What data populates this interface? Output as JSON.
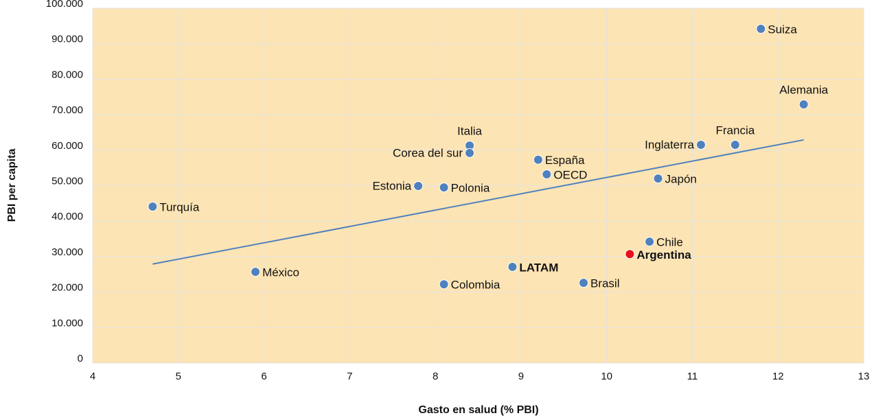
{
  "chart_data": {
    "type": "scatter",
    "xlabel": "Gasto en salud (% PBI)",
    "ylabel": "PBI per capita",
    "xlim": [
      4,
      13
    ],
    "xticks": [
      4,
      5,
      6,
      7,
      8,
      9,
      10,
      11,
      12,
      13
    ],
    "ylim": [
      0,
      100000
    ],
    "yticks": [
      0,
      {
        "value": 10000,
        "label": "10.000"
      },
      {
        "value": 20000,
        "label": "20.000"
      },
      {
        "value": 30000,
        "label": "30.000"
      },
      {
        "value": 40000,
        "label": "40.000"
      },
      {
        "value": 50000,
        "label": "50.000"
      },
      {
        "value": 60000,
        "label": "60.000"
      },
      {
        "value": 70000,
        "label": "70.000"
      },
      {
        "value": 80000,
        "label": "80.000"
      },
      {
        "value": 90000,
        "label": "90.000"
      },
      {
        "value": 100000,
        "label": "100.000"
      }
    ],
    "grid": true,
    "series": [
      {
        "labels": [
          "Turquía",
          "México",
          "Estonia",
          "Polonia",
          "Colombia",
          "Italia",
          "Corea del sur",
          "LATAM",
          "España",
          "OECD",
          "Brasil",
          "Argentina",
          "Chile",
          "Japón",
          "Inglaterra",
          "Francia",
          "Suiza",
          "Alemania"
        ],
        "x": [
          4.7,
          5.9,
          7.8,
          8.1,
          8.1,
          8.4,
          8.4,
          8.9,
          9.2,
          9.3,
          9.73,
          10.27,
          10.5,
          10.6,
          11.1,
          11.5,
          11.8,
          12.3
        ],
        "values": [
          44100,
          25700,
          49900,
          49500,
          22200,
          61300,
          59200,
          27100,
          57300,
          53200,
          22600,
          30700,
          34200,
          52000,
          61500,
          61500,
          94200,
          72900
        ],
        "colors": [
          "#4f81bd",
          "#4f81bd",
          "#4f81bd",
          "#4f81bd",
          "#4f81bd",
          "#4f81bd",
          "#4f81bd",
          "#4f81bd",
          "#4f81bd",
          "#4f81bd",
          "#4f81bd",
          "#e8101a",
          "#4f81bd",
          "#4f81bd",
          "#4f81bd",
          "#4f81bd",
          "#4f81bd",
          "#4f81bd"
        ]
      }
    ],
    "trendline": {
      "color": "#4f81bd",
      "x": [
        4.7,
        12.3
      ],
      "values": [
        27900,
        62900
      ]
    }
  }
}
